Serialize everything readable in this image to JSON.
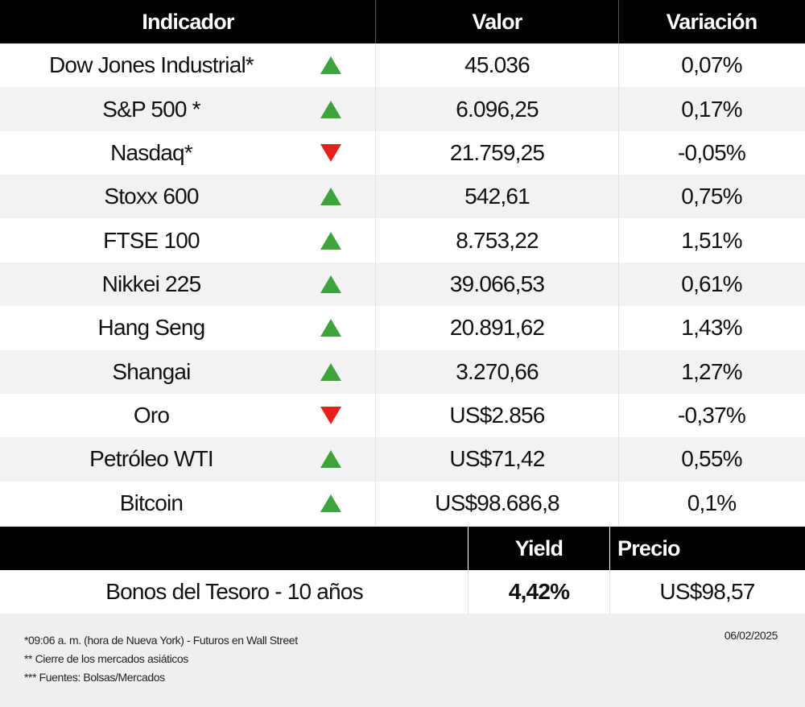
{
  "table": {
    "headers": [
      "Indicador",
      "Valor",
      "Variación"
    ],
    "rows": [
      {
        "name": "Dow Jones Industrial*",
        "trend": "up",
        "value": "45.036",
        "change": "0,07%"
      },
      {
        "name": "S&P 500 *",
        "trend": "up",
        "value": "6.096,25",
        "change": "0,17%"
      },
      {
        "name": "Nasdaq*",
        "trend": "down",
        "value": "21.759,25",
        "change": "-0,05%"
      },
      {
        "name": "Stoxx 600",
        "trend": "up",
        "value": "542,61",
        "change": "0,75%"
      },
      {
        "name": "FTSE 100",
        "trend": "up",
        "value": "8.753,22",
        "change": "1,51%"
      },
      {
        "name": "Nikkei 225",
        "trend": "up",
        "value": "39.066,53",
        "change": "0,61%"
      },
      {
        "name": "Hang Seng",
        "trend": "up",
        "value": "20.891,62",
        "change": "1,43%"
      },
      {
        "name": "Shangai",
        "trend": "up",
        "value": "3.270,66",
        "change": "1,27%"
      },
      {
        "name": "Oro",
        "trend": "down",
        "value": "US$2.856",
        "change": "-0,37%"
      },
      {
        "name": "Petróleo WTI",
        "trend": "up",
        "value": "US$71,42",
        "change": "0,55%"
      },
      {
        "name": "Bitcoin",
        "trend": "up",
        "value": "US$98.686,8",
        "change": "0,1%"
      }
    ]
  },
  "bonds": {
    "headers": [
      "Yield",
      "Precio"
    ],
    "name": "Bonos del Tesoro - 10 años",
    "yield": "4,42%",
    "price": "US$98,57"
  },
  "footer": {
    "notes": [
      "*09:06 a. m. (hora de Nueva York)  - Futuros en Wall Street",
      " ** Cierre de los mercados asiáticos",
      "*** Fuentes: Bolsas/Mercados"
    ],
    "date": "06/02/2025"
  }
}
